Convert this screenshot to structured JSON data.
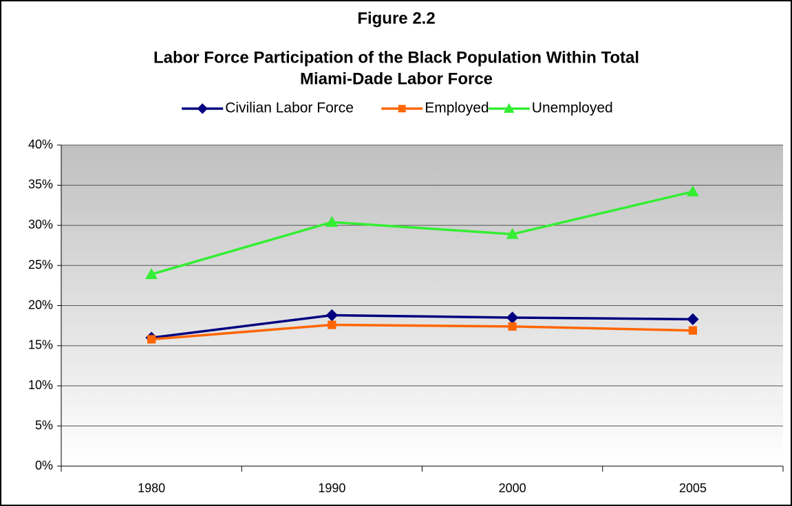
{
  "chart_data": {
    "type": "line",
    "title": "Figure 2.2",
    "subtitle": [
      "Labor Force Participation of the Black Population Within Total",
      "Miami-Dade Labor Force"
    ],
    "categories": [
      "1980",
      "1990",
      "2000",
      "2005"
    ],
    "series": [
      {
        "name": "Civilian Labor Force",
        "color": "#000080",
        "marker": "diamond",
        "values": [
          16.0,
          18.8,
          18.5,
          18.3
        ]
      },
      {
        "name": "Employed",
        "color": "#ff6600",
        "marker": "square",
        "values": [
          15.8,
          17.6,
          17.4,
          16.9
        ]
      },
      {
        "name": "Unemployed",
        "color": "#33ee33",
        "marker": "triangle",
        "values": [
          23.9,
          30.4,
          28.9,
          34.2
        ]
      }
    ],
    "ylim": [
      0,
      40
    ],
    "yticks": [
      {
        "value": 0,
        "label": "0%"
      },
      {
        "value": 5,
        "label": "5%"
      },
      {
        "value": 10,
        "label": "10%"
      },
      {
        "value": 15,
        "label": "15%"
      },
      {
        "value": 20,
        "label": "20%"
      },
      {
        "value": 25,
        "label": "25%"
      },
      {
        "value": 30,
        "label": "30%"
      },
      {
        "value": 35,
        "label": "35%"
      },
      {
        "value": 40,
        "label": "40%"
      }
    ],
    "grid": true,
    "legend": "top"
  }
}
